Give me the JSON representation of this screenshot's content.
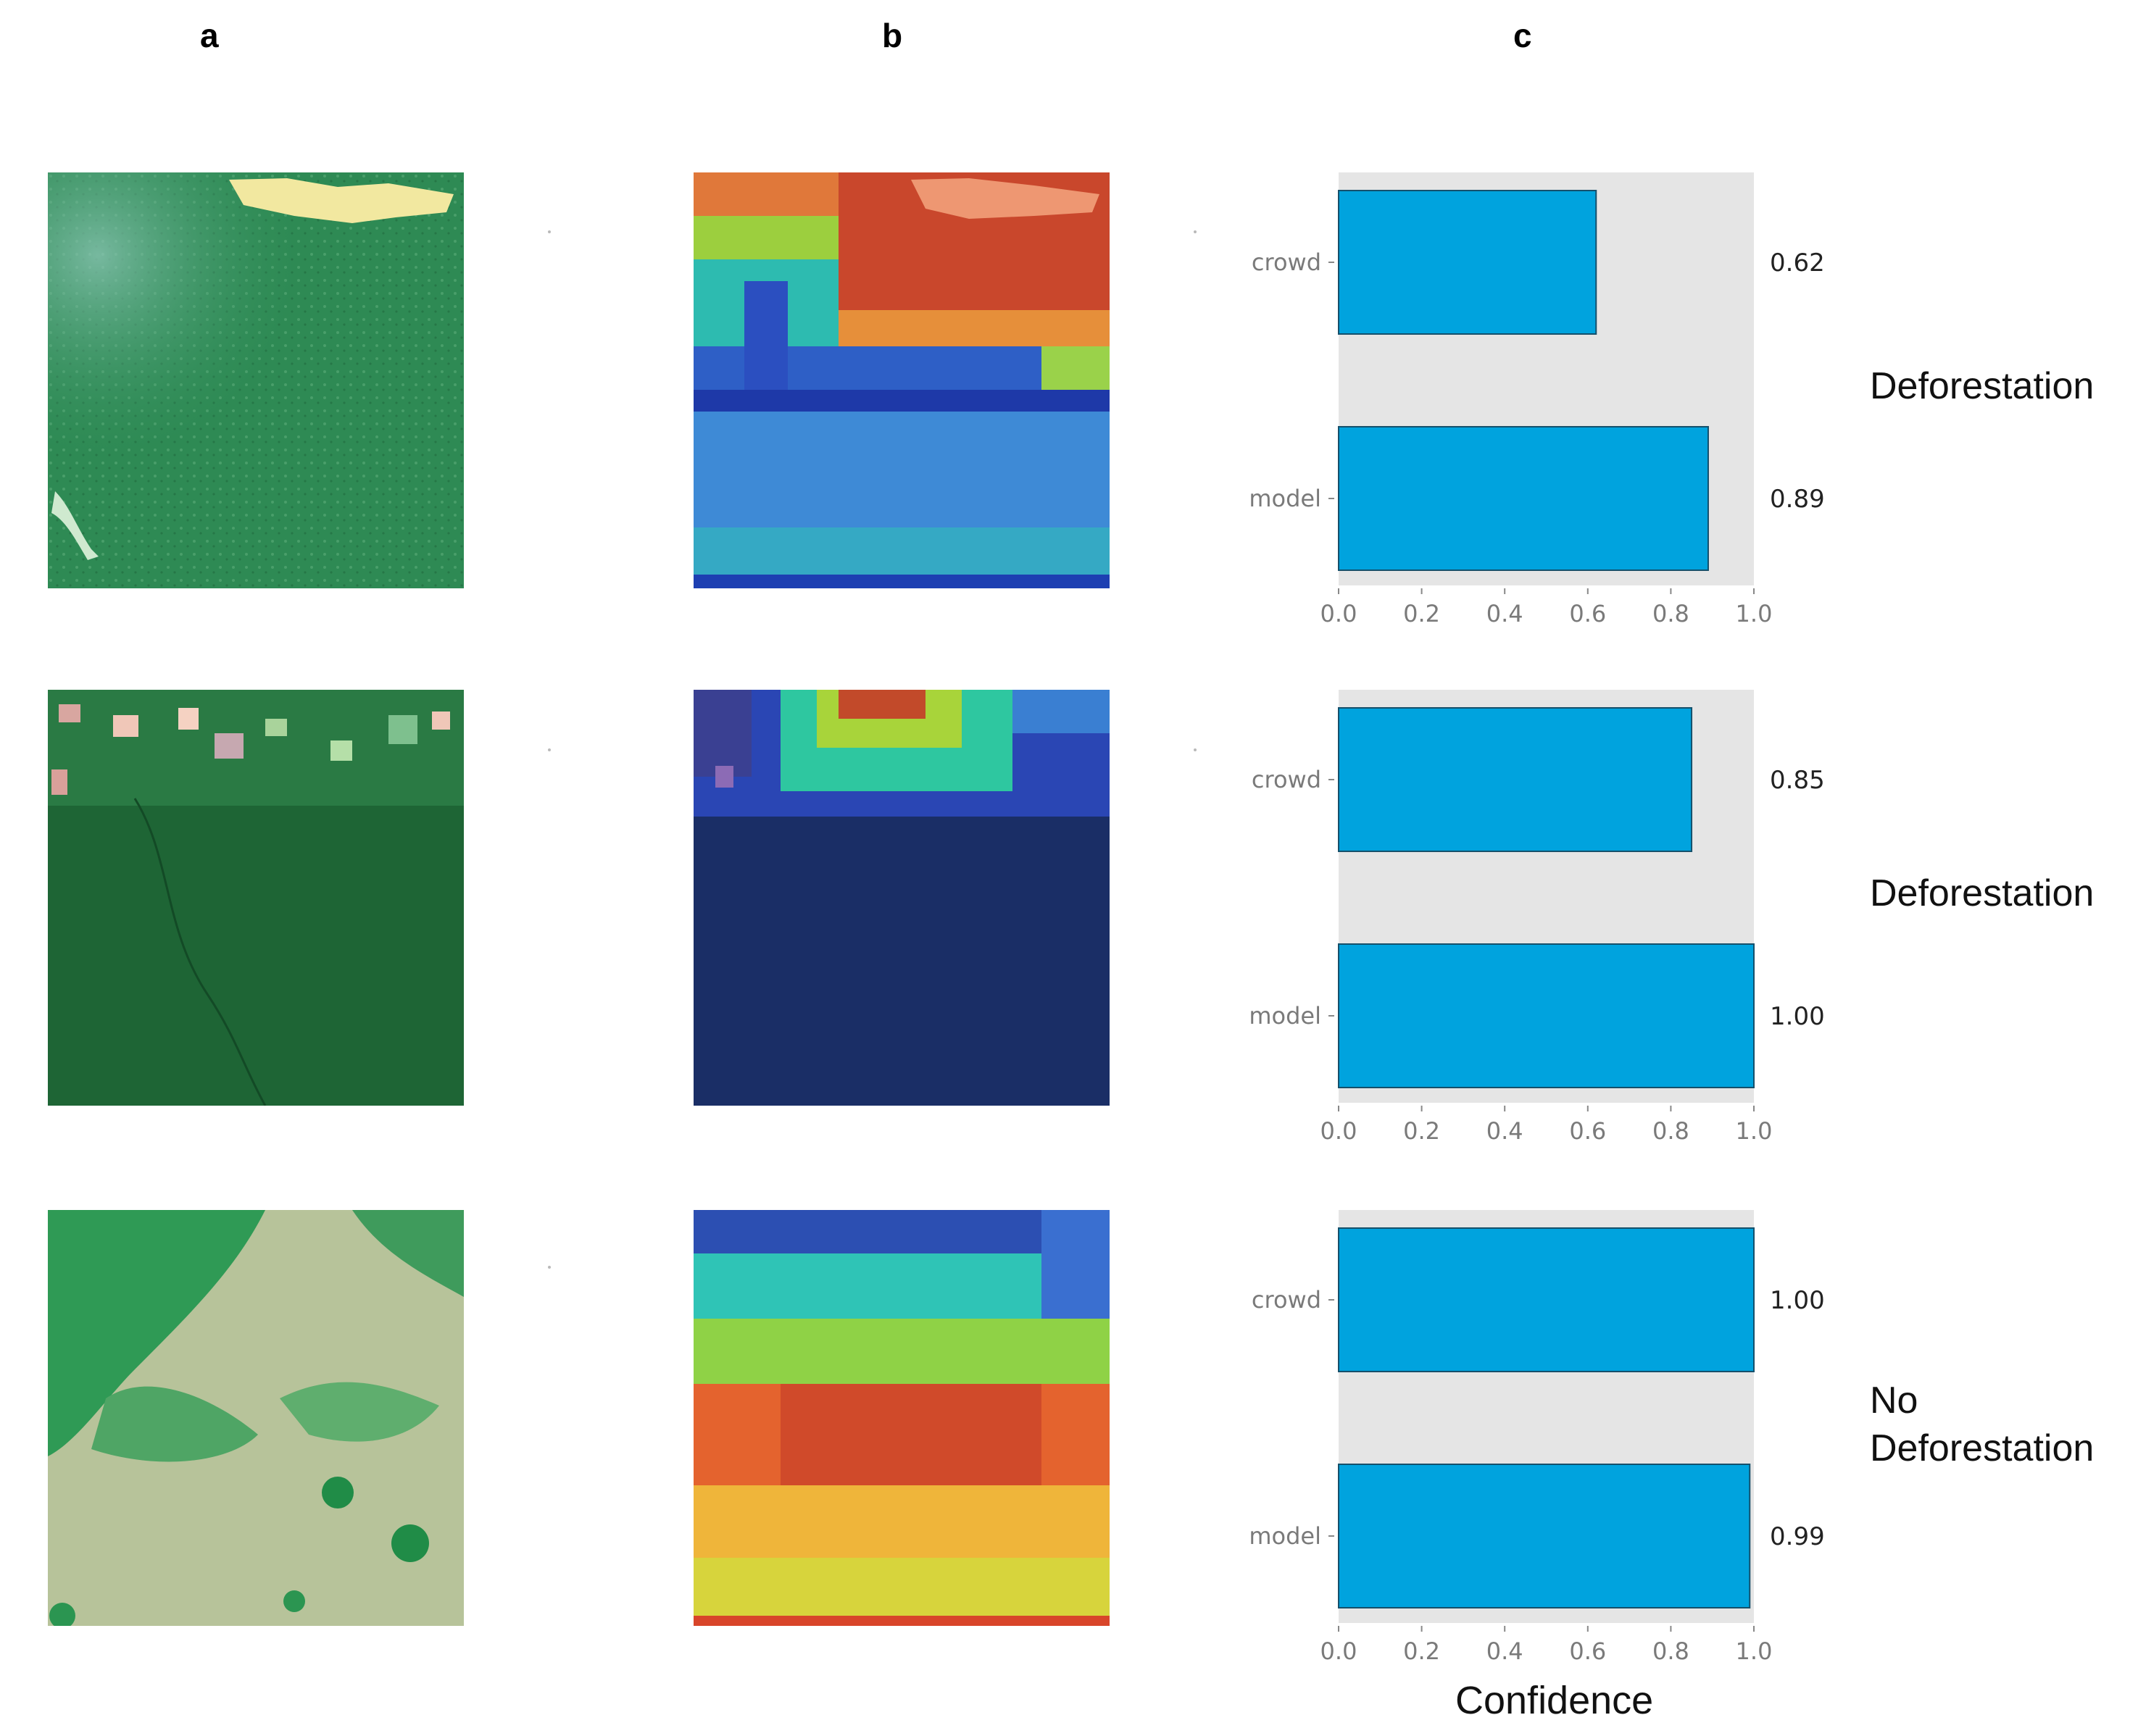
{
  "column_labels": [
    "a",
    "b",
    "c"
  ],
  "row_labels": [
    "Deforestation",
    "Deforestation",
    "No Deforestation"
  ],
  "x_axis_title": "Confidence",
  "images": {
    "a": [
      "satellite-image-row-1",
      "satellite-image-row-2",
      "satellite-image-row-3"
    ],
    "b": [
      "heatmap-overlay-row-1",
      "heatmap-overlay-row-2",
      "heatmap-overlay-row-3"
    ]
  },
  "colors": {
    "bar": "#00a3de",
    "bar_edge": "#15506b",
    "plot_bg": "#e5e5e5",
    "axis_text": "#7a7a7a"
  },
  "chart_data": [
    {
      "type": "bar",
      "orientation": "horizontal",
      "categories": [
        "crowd",
        "model"
      ],
      "values": [
        0.62,
        0.89
      ],
      "value_labels": [
        "0.62",
        "0.89"
      ],
      "xlim": [
        0.0,
        1.0
      ],
      "xticks": [
        "0.0",
        "0.2",
        "0.4",
        "0.6",
        "0.8",
        "1.0"
      ],
      "label": "Deforestation"
    },
    {
      "type": "bar",
      "orientation": "horizontal",
      "categories": [
        "crowd",
        "model"
      ],
      "values": [
        0.85,
        1.0
      ],
      "value_labels": [
        "0.85",
        "1.00"
      ],
      "xlim": [
        0.0,
        1.0
      ],
      "xticks": [
        "0.0",
        "0.2",
        "0.4",
        "0.6",
        "0.8",
        "1.0"
      ],
      "label": "Deforestation"
    },
    {
      "type": "bar",
      "orientation": "horizontal",
      "categories": [
        "crowd",
        "model"
      ],
      "values": [
        1.0,
        0.99
      ],
      "value_labels": [
        "1.00",
        "0.99"
      ],
      "xlim": [
        0.0,
        1.0
      ],
      "xticks": [
        "0.0",
        "0.2",
        "0.4",
        "0.6",
        "0.8",
        "1.0"
      ],
      "xlabel": "Confidence",
      "label": "No Deforestation"
    }
  ]
}
